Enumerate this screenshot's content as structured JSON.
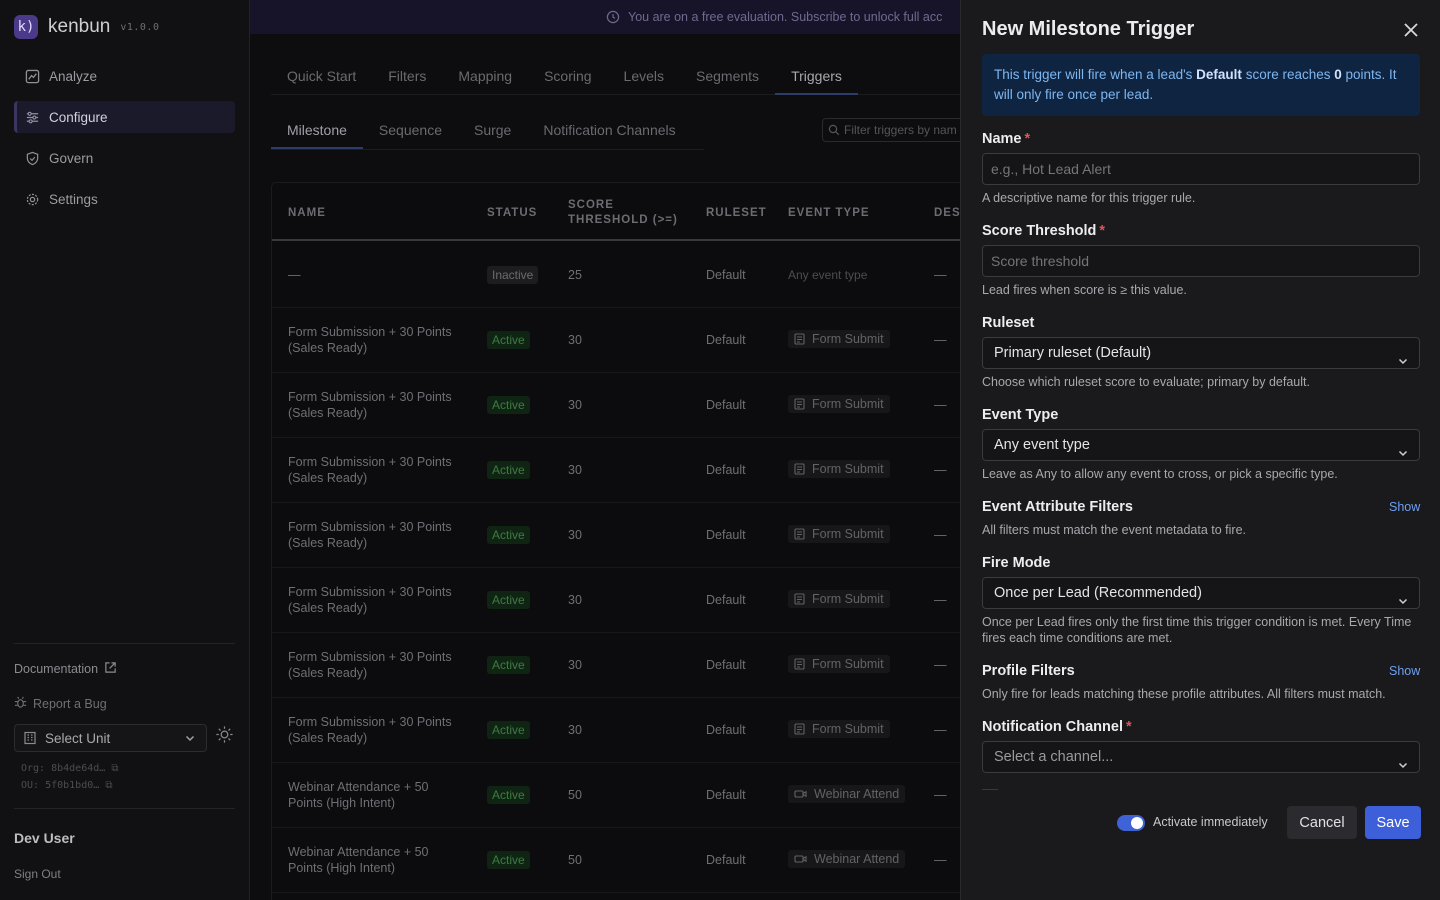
{
  "brand": {
    "name": "kenbun",
    "version": "v1.0.0",
    "logo": "k)"
  },
  "nav": [
    {
      "label": "Analyze",
      "icon": "analyze-icon"
    },
    {
      "label": "Configure",
      "icon": "sliders-icon",
      "active": true
    },
    {
      "label": "Govern",
      "icon": "shield-icon"
    },
    {
      "label": "Settings",
      "icon": "gear-icon"
    }
  ],
  "sidebar_bottom": {
    "documentation": "Documentation",
    "report_bug": "Report a Bug",
    "unit_select": "Select Unit",
    "org": "Org: 8b4de64d…",
    "ou": "OU: 5f0b1bd0…",
    "user": "Dev User",
    "sign_out": "Sign Out"
  },
  "banner": {
    "text": "You are on a free evaluation. Subscribe to unlock full acc"
  },
  "tabs_primary": [
    "Quick Start",
    "Filters",
    "Mapping",
    "Scoring",
    "Levels",
    "Segments",
    "Triggers"
  ],
  "tabs_secondary": [
    "Milestone",
    "Sequence",
    "Surge",
    "Notification Channels"
  ],
  "filter_placeholder": "Filter triggers by nam",
  "table": {
    "headers": {
      "name": "NAME",
      "status": "STATUS",
      "score1": "SCORE",
      "score2": "THRESHOLD (>=)",
      "ruleset": "RULESET",
      "event_type": "EVENT TYPE",
      "desc": "DES"
    },
    "rows": [
      {
        "name1": "—",
        "name2": "",
        "status": "Inactive",
        "score": "25",
        "ruleset": "Default",
        "event": "Any event type",
        "desc": "—"
      },
      {
        "name1": "Form Submission + 30 Points",
        "name2": "(Sales Ready)",
        "status": "Active",
        "score": "30",
        "ruleset": "Default",
        "event": "Form Submit",
        "desc": "—"
      },
      {
        "name1": "Form Submission + 30 Points",
        "name2": "(Sales Ready)",
        "status": "Active",
        "score": "30",
        "ruleset": "Default",
        "event": "Form Submit",
        "desc": "—"
      },
      {
        "name1": "Form Submission + 30 Points",
        "name2": "(Sales Ready)",
        "status": "Active",
        "score": "30",
        "ruleset": "Default",
        "event": "Form Submit",
        "desc": "—"
      },
      {
        "name1": "Form Submission + 30 Points",
        "name2": "(Sales Ready)",
        "status": "Active",
        "score": "30",
        "ruleset": "Default",
        "event": "Form Submit",
        "desc": "—"
      },
      {
        "name1": "Form Submission + 30 Points",
        "name2": "(Sales Ready)",
        "status": "Active",
        "score": "30",
        "ruleset": "Default",
        "event": "Form Submit",
        "desc": "—"
      },
      {
        "name1": "Form Submission + 30 Points",
        "name2": "(Sales Ready)",
        "status": "Active",
        "score": "30",
        "ruleset": "Default",
        "event": "Form Submit",
        "desc": "—"
      },
      {
        "name1": "Form Submission + 30 Points",
        "name2": "(Sales Ready)",
        "status": "Active",
        "score": "30",
        "ruleset": "Default",
        "event": "Form Submit",
        "desc": "—"
      },
      {
        "name1": "Webinar Attendance + 50",
        "name2": "Points (High Intent)",
        "status": "Active",
        "score": "50",
        "ruleset": "Default",
        "event": "Webinar Attend",
        "desc": "—"
      },
      {
        "name1": "Webinar Attendance + 50",
        "name2": "Points (High Intent)",
        "status": "Active",
        "score": "50",
        "ruleset": "Default",
        "event": "Webinar Attend",
        "desc": "—"
      }
    ]
  },
  "drawer": {
    "title": "New Milestone Trigger",
    "info_pre": "This trigger will fire when a lead's ",
    "info_bold1": "Default",
    "info_mid": " score reaches ",
    "info_bold2": "0",
    "info_post": " points. It will only fire once per lead.",
    "name_label": "Name",
    "name_placeholder": "e.g., Hot Lead Alert",
    "name_help": "A descriptive name for this trigger rule.",
    "threshold_label": "Score Threshold",
    "threshold_placeholder": "Score threshold",
    "threshold_help": "Lead fires when score is ≥ this value.",
    "ruleset_label": "Ruleset",
    "ruleset_value": "Primary ruleset (Default)",
    "ruleset_help": "Choose which ruleset score to evaluate; primary by default.",
    "event_label": "Event Type",
    "event_value": "Any event type",
    "event_help": "Leave as Any to allow any event to cross, or pick a specific type.",
    "attr_label": "Event Attribute Filters",
    "attr_show": "Show",
    "attr_help": "All filters must match the event metadata to fire.",
    "fire_label": "Fire Mode",
    "fire_value": "Once per Lead (Recommended)",
    "fire_help": "Once per Lead fires only the first time this trigger condition is met. Every Time fires each time conditions are met.",
    "profile_label": "Profile Filters",
    "profile_show": "Show",
    "profile_help": "Only fire for leads matching these profile attributes. All filters must match.",
    "channel_label": "Notification Channel",
    "channel_value": "Select a channel...",
    "required_mark": "*",
    "activate_label": "Activate immediately",
    "cancel": "Cancel",
    "save": "Save"
  },
  "colors": {
    "accent": "#3d5fd9",
    "info_bg": "#0f2440",
    "active_badge": "#3e7c44",
    "required": "#e05555"
  }
}
